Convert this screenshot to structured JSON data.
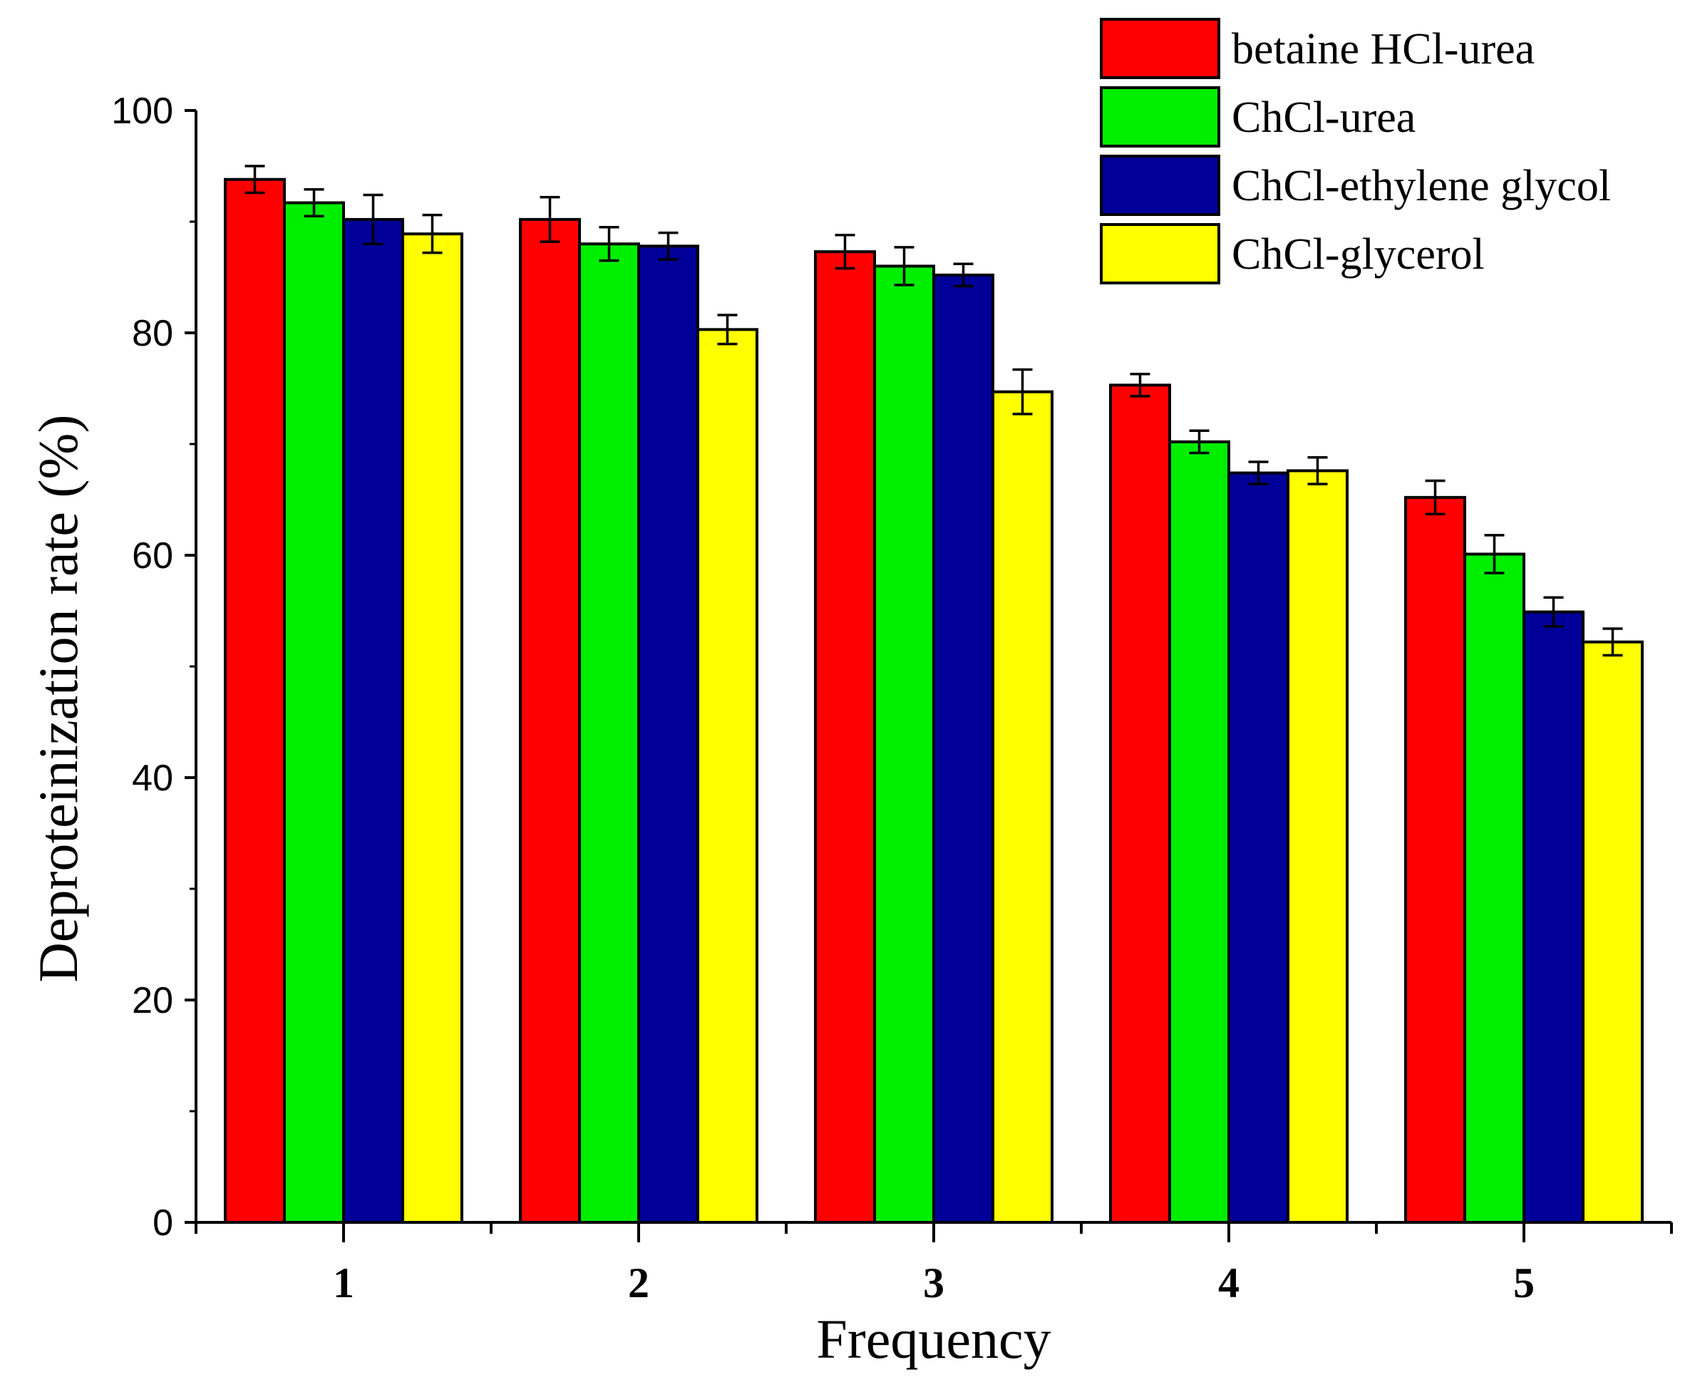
{
  "colors": {
    "betaine_hcl_urea": "#ff0000",
    "chcl_urea": "#00ee00",
    "chcl_ethylene_glycol": "#000099",
    "chcl_glycerol": "#ffff00",
    "axis": "#000000",
    "background": "#ffffff"
  },
  "chart_data": {
    "type": "bar",
    "title": "",
    "xlabel": "Frequency",
    "ylabel": "Deproteinization rate (%)",
    "categories": [
      "1",
      "2",
      "3",
      "4",
      "5"
    ],
    "ylim": [
      0,
      100
    ],
    "yticks": [
      0,
      20,
      40,
      60,
      80,
      100
    ],
    "ytick_labels": [
      "0",
      "20",
      "40",
      "60",
      "80",
      "100"
    ],
    "legend_position": "top-right",
    "grid": false,
    "error_bars": true,
    "series": [
      {
        "name": "betaine HCl-urea",
        "color": "#ff0000",
        "values": [
          93.8,
          90.2,
          87.3,
          75.3,
          65.2
        ],
        "errors": [
          1.2,
          2.0,
          1.5,
          1.0,
          1.5
        ]
      },
      {
        "name": "ChCl-urea",
        "color": "#00ee00",
        "values": [
          91.7,
          88.0,
          86.0,
          70.2,
          60.1
        ],
        "errors": [
          1.2,
          1.5,
          1.7,
          1.0,
          1.7
        ]
      },
      {
        "name": "ChCl-ethylene glycol",
        "color": "#000099",
        "values": [
          90.2,
          87.8,
          85.2,
          67.4,
          54.9
        ],
        "errors": [
          2.2,
          1.2,
          1.0,
          1.0,
          1.3
        ]
      },
      {
        "name": "ChCl-glycerol",
        "color": "#ffff00",
        "values": [
          88.9,
          80.3,
          74.7,
          67.6,
          52.2
        ],
        "errors": [
          1.7,
          1.3,
          2.0,
          1.2,
          1.2
        ]
      }
    ]
  }
}
